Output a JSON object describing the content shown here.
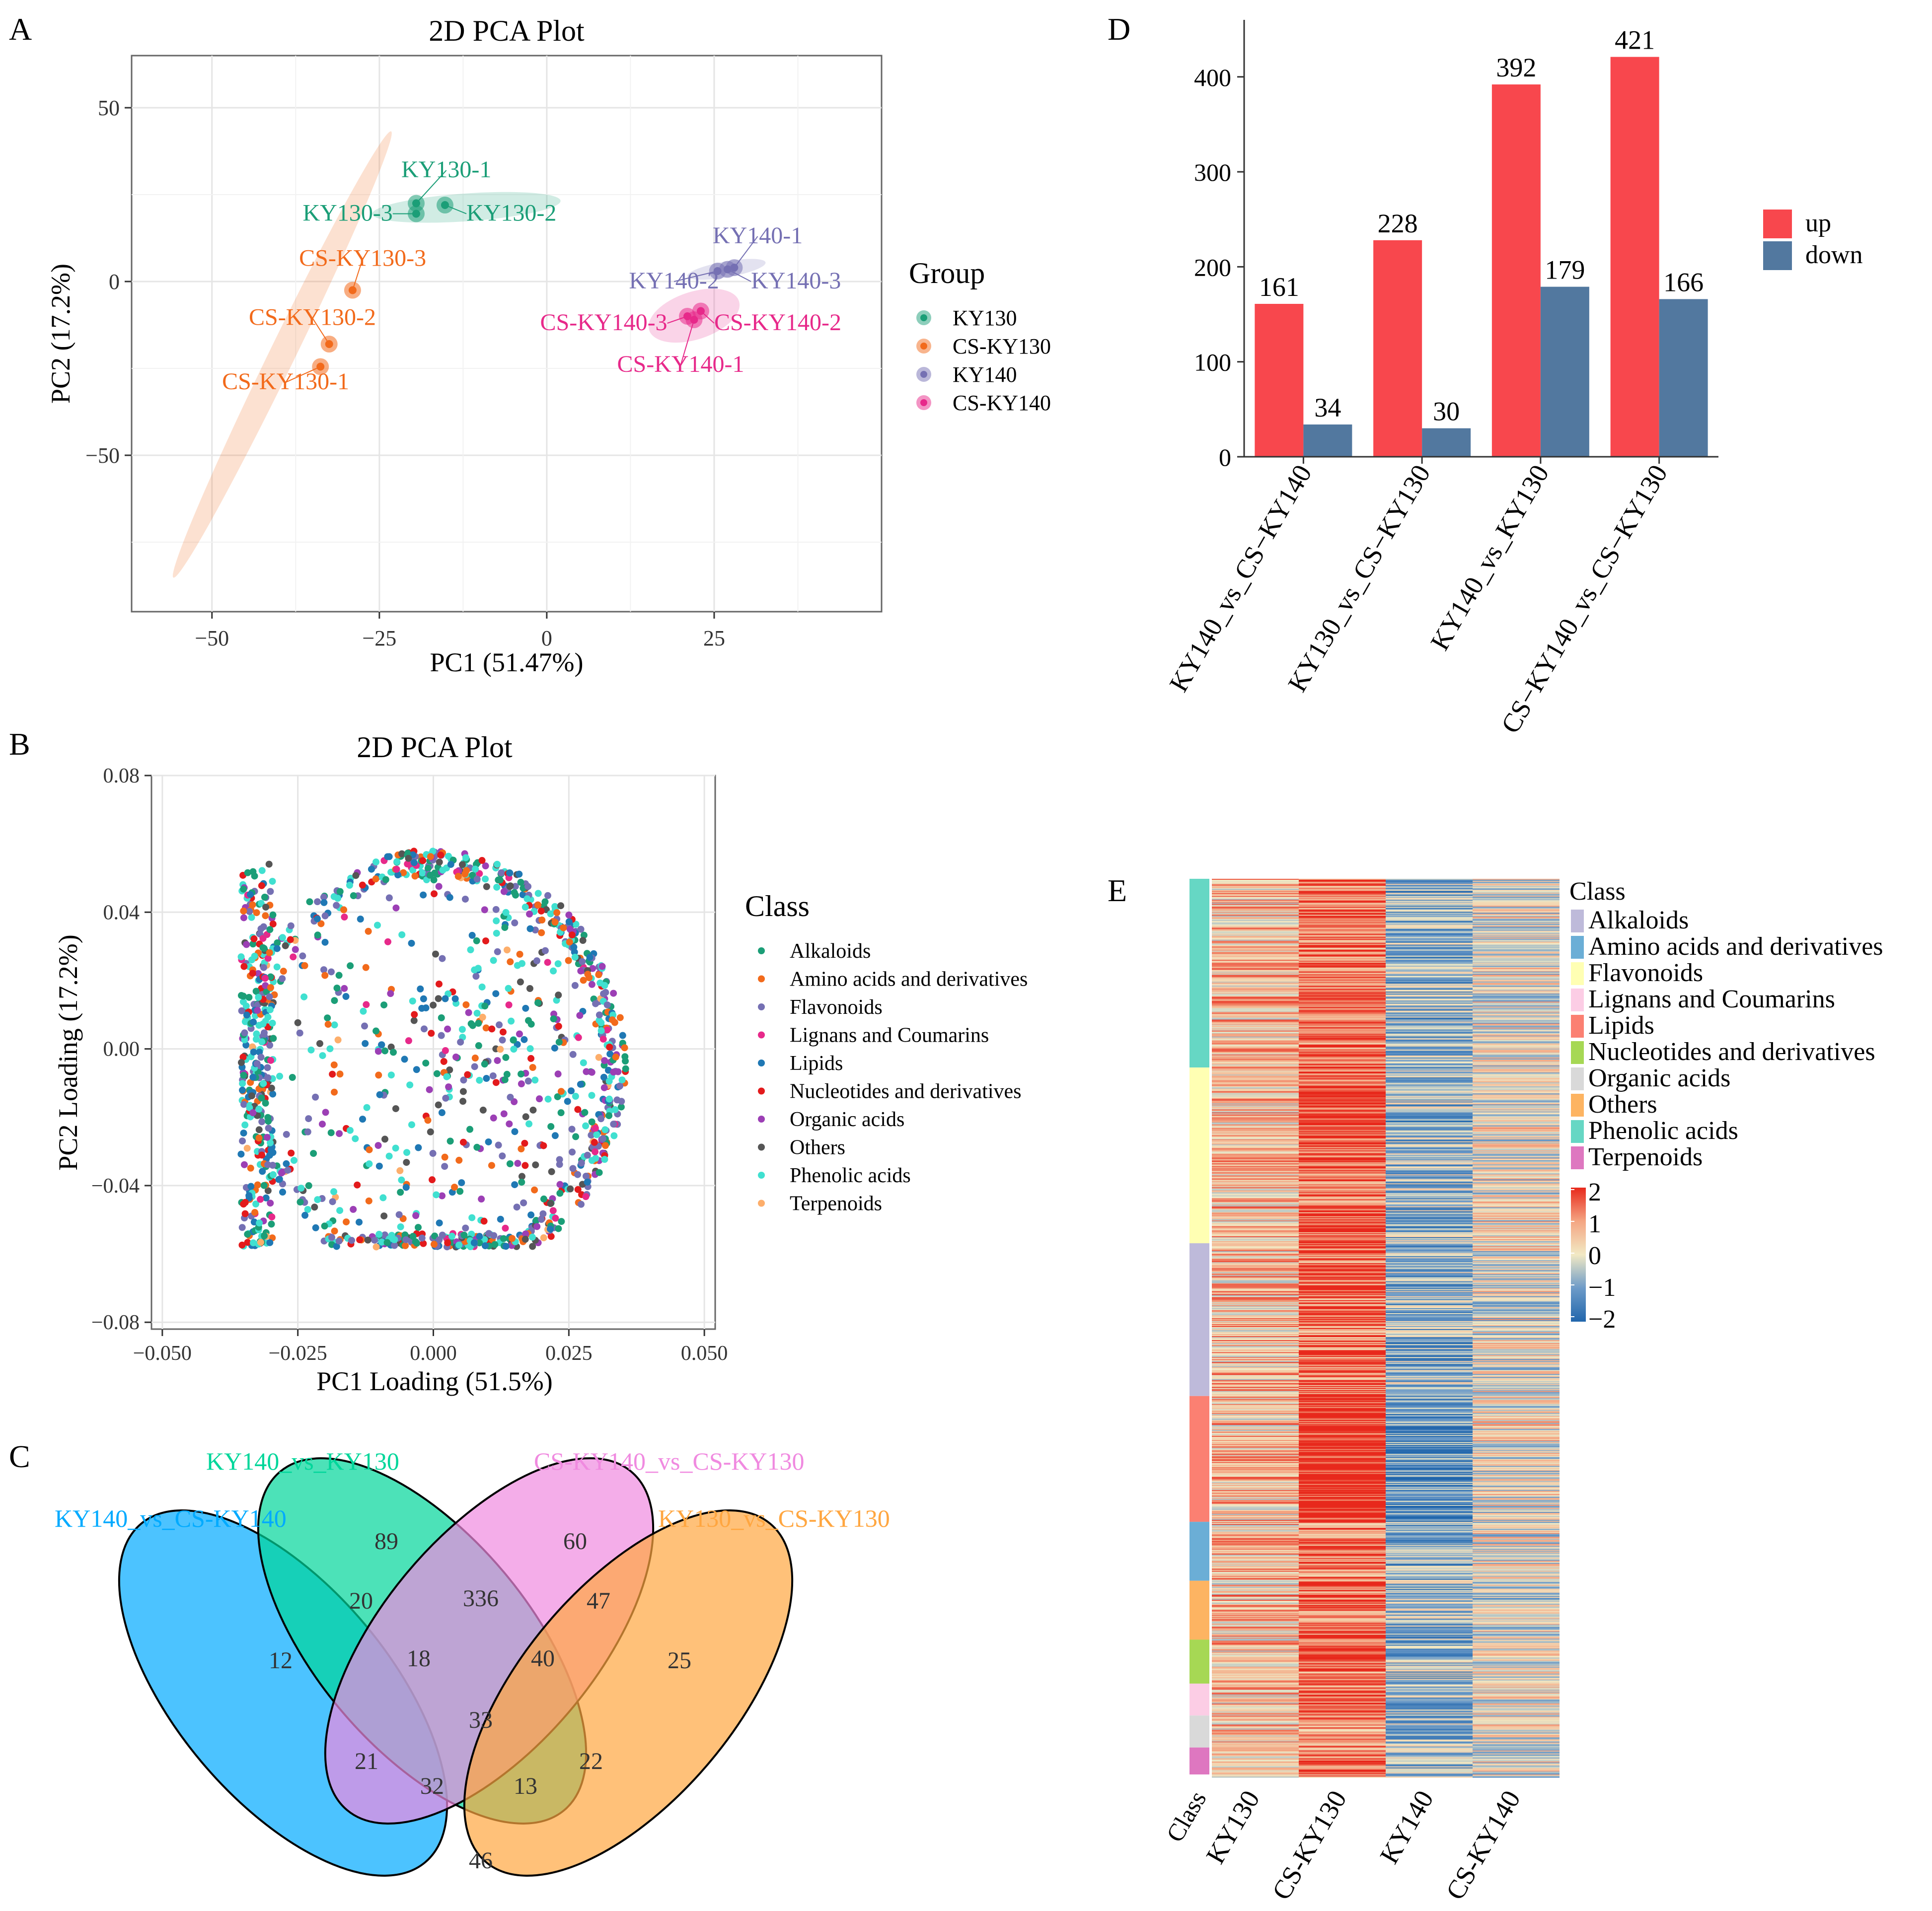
{
  "panels": {
    "a": "A",
    "b": "B",
    "c": "C",
    "d": "D",
    "e": "E"
  },
  "chart_data": [
    {
      "id": "A",
      "type": "scatter",
      "title": "2D PCA Plot",
      "xlabel": "PC1 (51.47%)",
      "ylabel": "PC2 (17.2%)",
      "xlim": [
        -62,
        50
      ],
      "ylim": [
        -95,
        65
      ],
      "xticks": [
        -50,
        -25,
        0,
        25
      ],
      "xtick_labels": [
        "−50",
        "−25",
        "0",
        "25"
      ],
      "yticks": [
        -50,
        0,
        50
      ],
      "ytick_labels": [
        "−50",
        "0",
        "50"
      ],
      "legend_title": "Group",
      "groups": [
        {
          "name": "KY130",
          "color": "#1b9e77",
          "points": [
            {
              "label": "KY130-1",
              "x": -19.5,
              "y": 22.5
            },
            {
              "label": "KY130-2",
              "x": -15.2,
              "y": 22.0
            },
            {
              "label": "KY130-3",
              "x": -19.5,
              "y": 19.5
            }
          ]
        },
        {
          "name": "CS-KY130",
          "color": "#f26a1b",
          "points": [
            {
              "label": "CS-KY130-1",
              "x": -33.8,
              "y": -24.5
            },
            {
              "label": "CS-KY130-2",
              "x": -32.5,
              "y": -18.0
            },
            {
              "label": "CS-KY130-3",
              "x": -29.0,
              "y": -2.5
            }
          ]
        },
        {
          "name": "KY140",
          "color": "#7570b3",
          "points": [
            {
              "label": "KY140-1",
              "x": 28.0,
              "y": 4.0
            },
            {
              "label": "KY140-2",
              "x": 25.5,
              "y": 3.0
            },
            {
              "label": "KY140-3",
              "x": 27.0,
              "y": 3.5
            }
          ]
        },
        {
          "name": "CS-KY140",
          "color": "#e7298a",
          "points": [
            {
              "label": "CS-KY140-1",
              "x": 22.0,
              "y": -11.0
            },
            {
              "label": "CS-KY140-2",
              "x": 23.0,
              "y": -8.5
            },
            {
              "label": "CS-KY140-3",
              "x": 21.0,
              "y": -10.0
            }
          ]
        }
      ]
    },
    {
      "id": "B",
      "type": "scatter",
      "title": "2D PCA Plot",
      "xlabel": "PC1 Loading (51.5%)",
      "ylabel": "PC2 Loading (17.2%)",
      "xlim": [
        -0.052,
        0.052
      ],
      "ylim": [
        -0.082,
        0.08
      ],
      "xticks": [
        -0.05,
        -0.025,
        0.0,
        0.025,
        0.05
      ],
      "xtick_labels": [
        "−0.050",
        "−0.025",
        "0.000",
        "0.025",
        "0.050"
      ],
      "yticks": [
        -0.08,
        -0.04,
        0.0,
        0.04,
        0.08
      ],
      "ytick_labels": [
        "−0.08",
        "−0.04",
        "0.00",
        "0.04",
        "0.08"
      ],
      "legend_title": "Class",
      "classes": [
        {
          "name": "Alkaloids",
          "color": "#1b9e77"
        },
        {
          "name": "Amino acids and derivatives",
          "color": "#f26a1b"
        },
        {
          "name": "Flavonoids",
          "color": "#7570b3"
        },
        {
          "name": "Lignans and Coumarins",
          "color": "#e7298a"
        },
        {
          "name": "Lipids",
          "color": "#1f78b4"
        },
        {
          "name": "Nucleotides and derivatives",
          "color": "#e31a1c"
        },
        {
          "name": "Organic acids",
          "color": "#9c3fb5"
        },
        {
          "name": "Others",
          "color": "#555555"
        },
        {
          "name": "Phenolic acids",
          "color": "#40e0d0"
        },
        {
          "name": "Terpenoids",
          "color": "#fdae6b"
        }
      ],
      "point_count": 1400,
      "distribution": "disk of loadings centred near (0, 0), radius about 0.035, dense crescent along the left edge and dense arc along the right edge"
    },
    {
      "id": "C",
      "type": "venn",
      "sets": [
        {
          "name": "KY140_vs_CS-KY140",
          "color": "#00aaff"
        },
        {
          "name": "KY140_vs_KY130",
          "color": "#00d69a"
        },
        {
          "name": "CS-KY140_vs_CS-KY130",
          "color": "#f08ae0"
        },
        {
          "name": "KY130_vs_CS-KY130",
          "color": "#ffa640"
        }
      ],
      "regions": [
        {
          "sets": [
            "KY140_vs_CS-KY140"
          ],
          "value": 12
        },
        {
          "sets": [
            "KY140_vs_KY130"
          ],
          "value": 89
        },
        {
          "sets": [
            "CS-KY140_vs_CS-KY130"
          ],
          "value": 60
        },
        {
          "sets": [
            "KY130_vs_CS-KY130"
          ],
          "value": 25
        },
        {
          "sets": [
            "KY140_vs_CS-KY140",
            "KY140_vs_KY130"
          ],
          "value": 20
        },
        {
          "sets": [
            "KY140_vs_KY130",
            "CS-KY140_vs_CS-KY130"
          ],
          "value": 336
        },
        {
          "sets": [
            "CS-KY140_vs_CS-KY130",
            "KY130_vs_CS-KY130"
          ],
          "value": 47
        },
        {
          "sets": [
            "KY140_vs_CS-KY140",
            "KY140_vs_KY130",
            "CS-KY140_vs_CS-KY130"
          ],
          "value": 18
        },
        {
          "sets": [
            "KY140_vs_KY130",
            "CS-KY140_vs_CS-KY130",
            "KY130_vs_CS-KY130"
          ],
          "value": 40
        },
        {
          "sets": [
            "KY140_vs_CS-KY140",
            "CS-KY140_vs_CS-KY130"
          ],
          "value": 21
        },
        {
          "sets": [
            "KY140_vs_CS-KY140",
            "KY140_vs_KY130",
            "CS-KY140_vs_CS-KY130",
            "KY130_vs_CS-KY130"
          ],
          "value": 33
        },
        {
          "sets": [
            "KY140_vs_KY130",
            "KY130_vs_CS-KY130"
          ],
          "value": 22
        },
        {
          "sets": [
            "KY140_vs_CS-KY140",
            "CS-KY140_vs_CS-KY130",
            "KY130_vs_CS-KY130"
          ],
          "value": 32
        },
        {
          "sets": [
            "KY140_vs_CS-KY140",
            "KY140_vs_KY130",
            "KY130_vs_CS-KY130"
          ],
          "value": 13
        },
        {
          "sets": [
            "KY140_vs_CS-KY140",
            "KY130_vs_CS-KY130"
          ],
          "value": 46
        }
      ]
    },
    {
      "id": "D",
      "type": "bar",
      "categories": [
        "KY140_vs_CS−KY140",
        "KY130_vs_CS−KY130",
        "KY140_vs_KY130",
        "CS−KY140_vs_CS−KY130"
      ],
      "series": [
        {
          "name": "up",
          "color": "#f8474d",
          "values": [
            161,
            228,
            392,
            421
          ]
        },
        {
          "name": "down",
          "color": "#52789f",
          "values": [
            34,
            30,
            179,
            166
          ]
        }
      ],
      "ylim": [
        0,
        460
      ],
      "yticks": [
        0,
        100,
        200,
        300,
        400
      ],
      "title": "",
      "xlabel": "",
      "ylabel": ""
    },
    {
      "id": "E",
      "type": "heatmap",
      "columns": [
        "KY130",
        "CS-KY130",
        "KY140",
        "CS-KY140"
      ],
      "annotation_label": "Class",
      "legend_title": "Class",
      "classes": [
        {
          "name": "Alkaloids",
          "color": "#bebada"
        },
        {
          "name": "Amino acids and derivatives",
          "color": "#6baed6"
        },
        {
          "name": "Flavonoids",
          "color": "#ffffb3"
        },
        {
          "name": "Lignans and Coumarins",
          "color": "#fccde5"
        },
        {
          "name": "Lipids",
          "color": "#fb8072"
        },
        {
          "name": "Nucleotides and derivatives",
          "color": "#a6d854"
        },
        {
          "name": "Organic acids",
          "color": "#d9d9d9"
        },
        {
          "name": "Others",
          "color": "#fdb462"
        },
        {
          "name": "Phenolic acids",
          "color": "#66d7c4"
        },
        {
          "name": "Terpenoids",
          "color": "#de77c0"
        }
      ],
      "row_class_order": [
        "Phenolic acids",
        "Flavonoids",
        "Alkaloids",
        "Lipids",
        "Amino acids and derivatives",
        "Others",
        "Nucleotides and derivatives",
        "Lignans and Coumarins",
        "Organic acids",
        "Terpenoids"
      ],
      "row_class_share": [
        0.21,
        0.195,
        0.17,
        0.14,
        0.066,
        0.066,
        0.049,
        0.036,
        0.036,
        0.03
      ],
      "column_bias": [
        0.6,
        1.2,
        -0.7,
        0.0
      ],
      "colorbar": {
        "min": -2,
        "max": 2,
        "ticks": [
          "2",
          "1",
          "0",
          "−1",
          "−2"
        ],
        "colors": [
          "#2166ac",
          "#6d9bc8",
          "#f2e9c4",
          "#f4a582",
          "#e8291c"
        ]
      }
    }
  ]
}
